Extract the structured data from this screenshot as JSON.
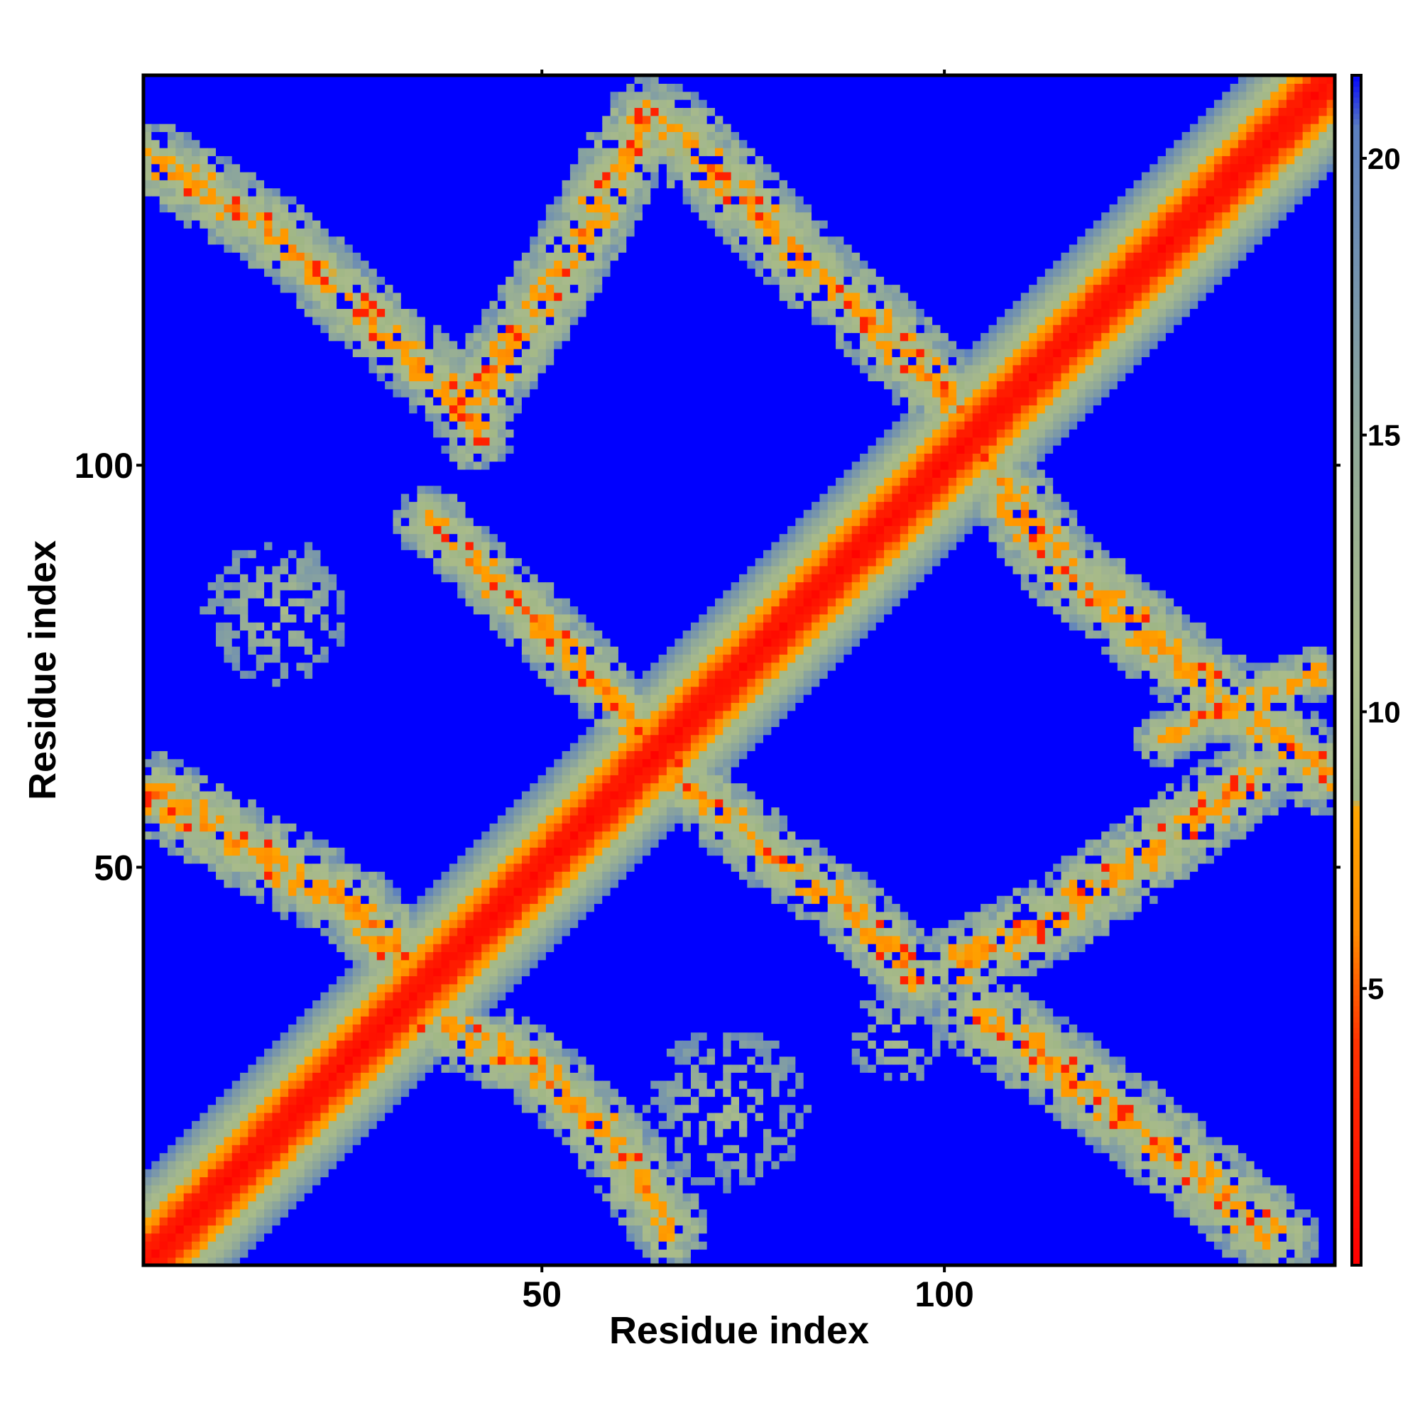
{
  "chart_data": {
    "type": "heatmap",
    "title": "",
    "xlabel": "Residue index",
    "ylabel": "Residue index",
    "xlim": [
      1,
      148
    ],
    "ylim": [
      1,
      148
    ],
    "xticks": [
      {
        "value": 50,
        "label": "50"
      },
      {
        "value": 100,
        "label": "100"
      }
    ],
    "yticks": [
      {
        "value": 50,
        "label": "50"
      },
      {
        "value": 100,
        "label": "100"
      }
    ],
    "colorbar": {
      "ticks": [
        {
          "value": 5,
          "label": "5"
        },
        {
          "value": 10,
          "label": "10"
        },
        {
          "value": 15,
          "label": "15"
        },
        {
          "value": 20,
          "label": "20"
        }
      ],
      "range": [
        0,
        21.5
      ]
    },
    "colorscale": [
      {
        "value": 0,
        "color": "#ff0000"
      },
      {
        "value": 4,
        "color": "#ff3300"
      },
      {
        "value": 6,
        "color": "#ff8c00"
      },
      {
        "value": 8.2,
        "color": "#ffa500"
      },
      {
        "value": 8.4,
        "color": "#9fb686"
      },
      {
        "value": 11,
        "color": "#a9bb8a"
      },
      {
        "value": 15,
        "color": "#8fa89a"
      },
      {
        "value": 20.5,
        "color": "#5b7fc0"
      },
      {
        "value": 21.5,
        "color": "#0000ff"
      }
    ],
    "background_color": "#0000ff",
    "grid": false,
    "bands": [
      {
        "name": "diagonal",
        "points": [
          [
            1,
            1
          ],
          [
            148,
            148
          ]
        ],
        "core": 1.5,
        "width": 8
      },
      {
        "name": "upper-left anti-band",
        "points": [
          [
            2,
            138
          ],
          [
            18,
            128
          ],
          [
            31,
            116
          ],
          [
            40,
            108
          ],
          [
            42,
            104
          ]
        ],
        "width": 4.8
      },
      {
        "name": "top anti-band",
        "points": [
          [
            43,
            110
          ],
          [
            53,
            125
          ],
          [
            63,
            143
          ]
        ],
        "width": 5.2
      },
      {
        "name": "top right band",
        "points": [
          [
            66,
            142
          ],
          [
            80,
            128
          ],
          [
            96,
            113
          ],
          [
            103,
            106
          ]
        ],
        "width": 5.2
      },
      {
        "name": "middle left band",
        "points": [
          [
            36,
            93
          ],
          [
            48,
            82
          ],
          [
            57,
            73
          ],
          [
            63,
            66
          ]
        ],
        "width": 4.3
      },
      {
        "name": "right lower band",
        "points": [
          [
            104,
            102
          ],
          [
            114,
            88
          ],
          [
            125,
            79
          ],
          [
            139,
            68
          ],
          [
            147,
            62
          ]
        ],
        "width": 5.2
      },
      {
        "name": "left cross band",
        "points": [
          [
            2,
            59
          ],
          [
            16,
            51
          ],
          [
            27,
            45
          ],
          [
            36,
            35
          ]
        ],
        "width": 5.2
      },
      {
        "name": "lower mid band",
        "points": [
          [
            36,
            31
          ],
          [
            48,
            26
          ],
          [
            58,
            17
          ],
          [
            66,
            5
          ]
        ],
        "width": 4.8
      },
      {
        "name": "center lower band",
        "points": [
          [
            66,
            62
          ],
          [
            78,
            52
          ],
          [
            88,
            45
          ],
          [
            97,
            36
          ]
        ],
        "width": 4.5
      },
      {
        "name": "right mid band",
        "points": [
          [
            102,
            38
          ],
          [
            114,
            44
          ],
          [
            127,
            53
          ],
          [
            138,
            61
          ]
        ],
        "width": 5.2
      },
      {
        "name": "bottom right band",
        "points": [
          [
            104,
            32
          ],
          [
            116,
            24
          ],
          [
            130,
            13
          ],
          [
            141,
            4
          ]
        ],
        "width": 5.4
      },
      {
        "name": "right upper tail",
        "points": [
          [
            127,
            66
          ],
          [
            140,
            72
          ],
          [
            146,
            74
          ]
        ],
        "width": 3.2
      }
    ],
    "sparse_spots": [
      {
        "x": 17,
        "y": 82,
        "radius": 9
      },
      {
        "x": 73,
        "y": 20,
        "radius": 10
      },
      {
        "x": 94,
        "y": 29,
        "radius": 6
      }
    ]
  }
}
